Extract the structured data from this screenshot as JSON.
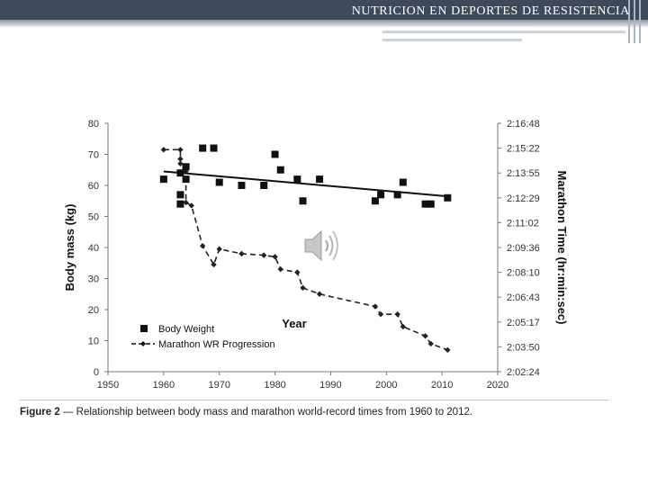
{
  "slide": {
    "title": "NUTRICION EN DEPORTES DE RESISTENCIA"
  },
  "caption": {
    "label": "Figure 2",
    "text": "— Relationship between body mass and marathon world-record times from 1960 to 2012."
  },
  "colors": {
    "header": "#3e4a5a",
    "ink": "#111111"
  },
  "icons": {
    "audio": "speaker-icon"
  },
  "chart_data": {
    "type": "scatter",
    "title": "",
    "xlabel": "Year",
    "ylabel": "Body mass (kg)",
    "y2label": "Marathon Time (hr:min:sec)",
    "xlim": [
      1950,
      2020
    ],
    "ylim": [
      0,
      80
    ],
    "xticks": [
      "1950",
      "1960",
      "1970",
      "1980",
      "1990",
      "2000",
      "2010",
      "2020"
    ],
    "yticks": [
      "0",
      "10",
      "20",
      "30",
      "40",
      "50",
      "60",
      "70",
      "80"
    ],
    "y2ticks": [
      "2:02:24",
      "2:03:50",
      "2:05:17",
      "2:06:43",
      "2:08:10",
      "2:09:36",
      "2:11:02",
      "2:12:29",
      "2:13:55",
      "2:15:22",
      "2:16:48"
    ],
    "legend": [
      "Body Weight",
      "Marathon WR Progression"
    ],
    "legend_position": "bottom-left",
    "series": [
      {
        "name": "Body Weight",
        "marker": "square",
        "points": [
          [
            1960,
            62
          ],
          [
            1963,
            57
          ],
          [
            1963,
            54
          ],
          [
            1963,
            64
          ],
          [
            1964,
            66
          ],
          [
            1964,
            62
          ],
          [
            1967,
            72
          ],
          [
            1969,
            72
          ],
          [
            1970,
            61
          ],
          [
            1974,
            60
          ],
          [
            1978,
            60
          ],
          [
            1980,
            70
          ],
          [
            1981,
            65
          ],
          [
            1984,
            62
          ],
          [
            1985,
            55
          ],
          [
            1988,
            62
          ],
          [
            1998,
            55
          ],
          [
            1999,
            57
          ],
          [
            2002,
            57
          ],
          [
            2003,
            61
          ],
          [
            2007,
            54
          ],
          [
            2008,
            54
          ],
          [
            2011,
            56
          ]
        ]
      },
      {
        "name": "Marathon WR Progression",
        "marker": "diamond-dashed-line",
        "points": [
          [
            1960,
            71.5
          ],
          [
            1963,
            71.5
          ],
          [
            1963,
            68.5
          ],
          [
            1963,
            67
          ],
          [
            1964,
            64.5
          ],
          [
            1964,
            54.5
          ],
          [
            1965,
            53.5
          ],
          [
            1967,
            40.5
          ],
          [
            1969,
            34.5
          ],
          [
            1970,
            39.5
          ],
          [
            1974,
            38
          ],
          [
            1978,
            37.5
          ],
          [
            1980,
            37
          ],
          [
            1981,
            33
          ],
          [
            1984,
            32
          ],
          [
            1985,
            27
          ],
          [
            1988,
            25
          ],
          [
            1998,
            21
          ],
          [
            1999,
            18.5
          ],
          [
            2002,
            18.5
          ],
          [
            2003,
            14.5
          ],
          [
            2007,
            11.5
          ],
          [
            2008,
            9
          ],
          [
            2011,
            7
          ]
        ]
      }
    ],
    "trendline": {
      "name": "Body Weight trend",
      "x": [
        1960,
        2011
      ],
      "y": [
        64.5,
        56.5
      ]
    }
  }
}
